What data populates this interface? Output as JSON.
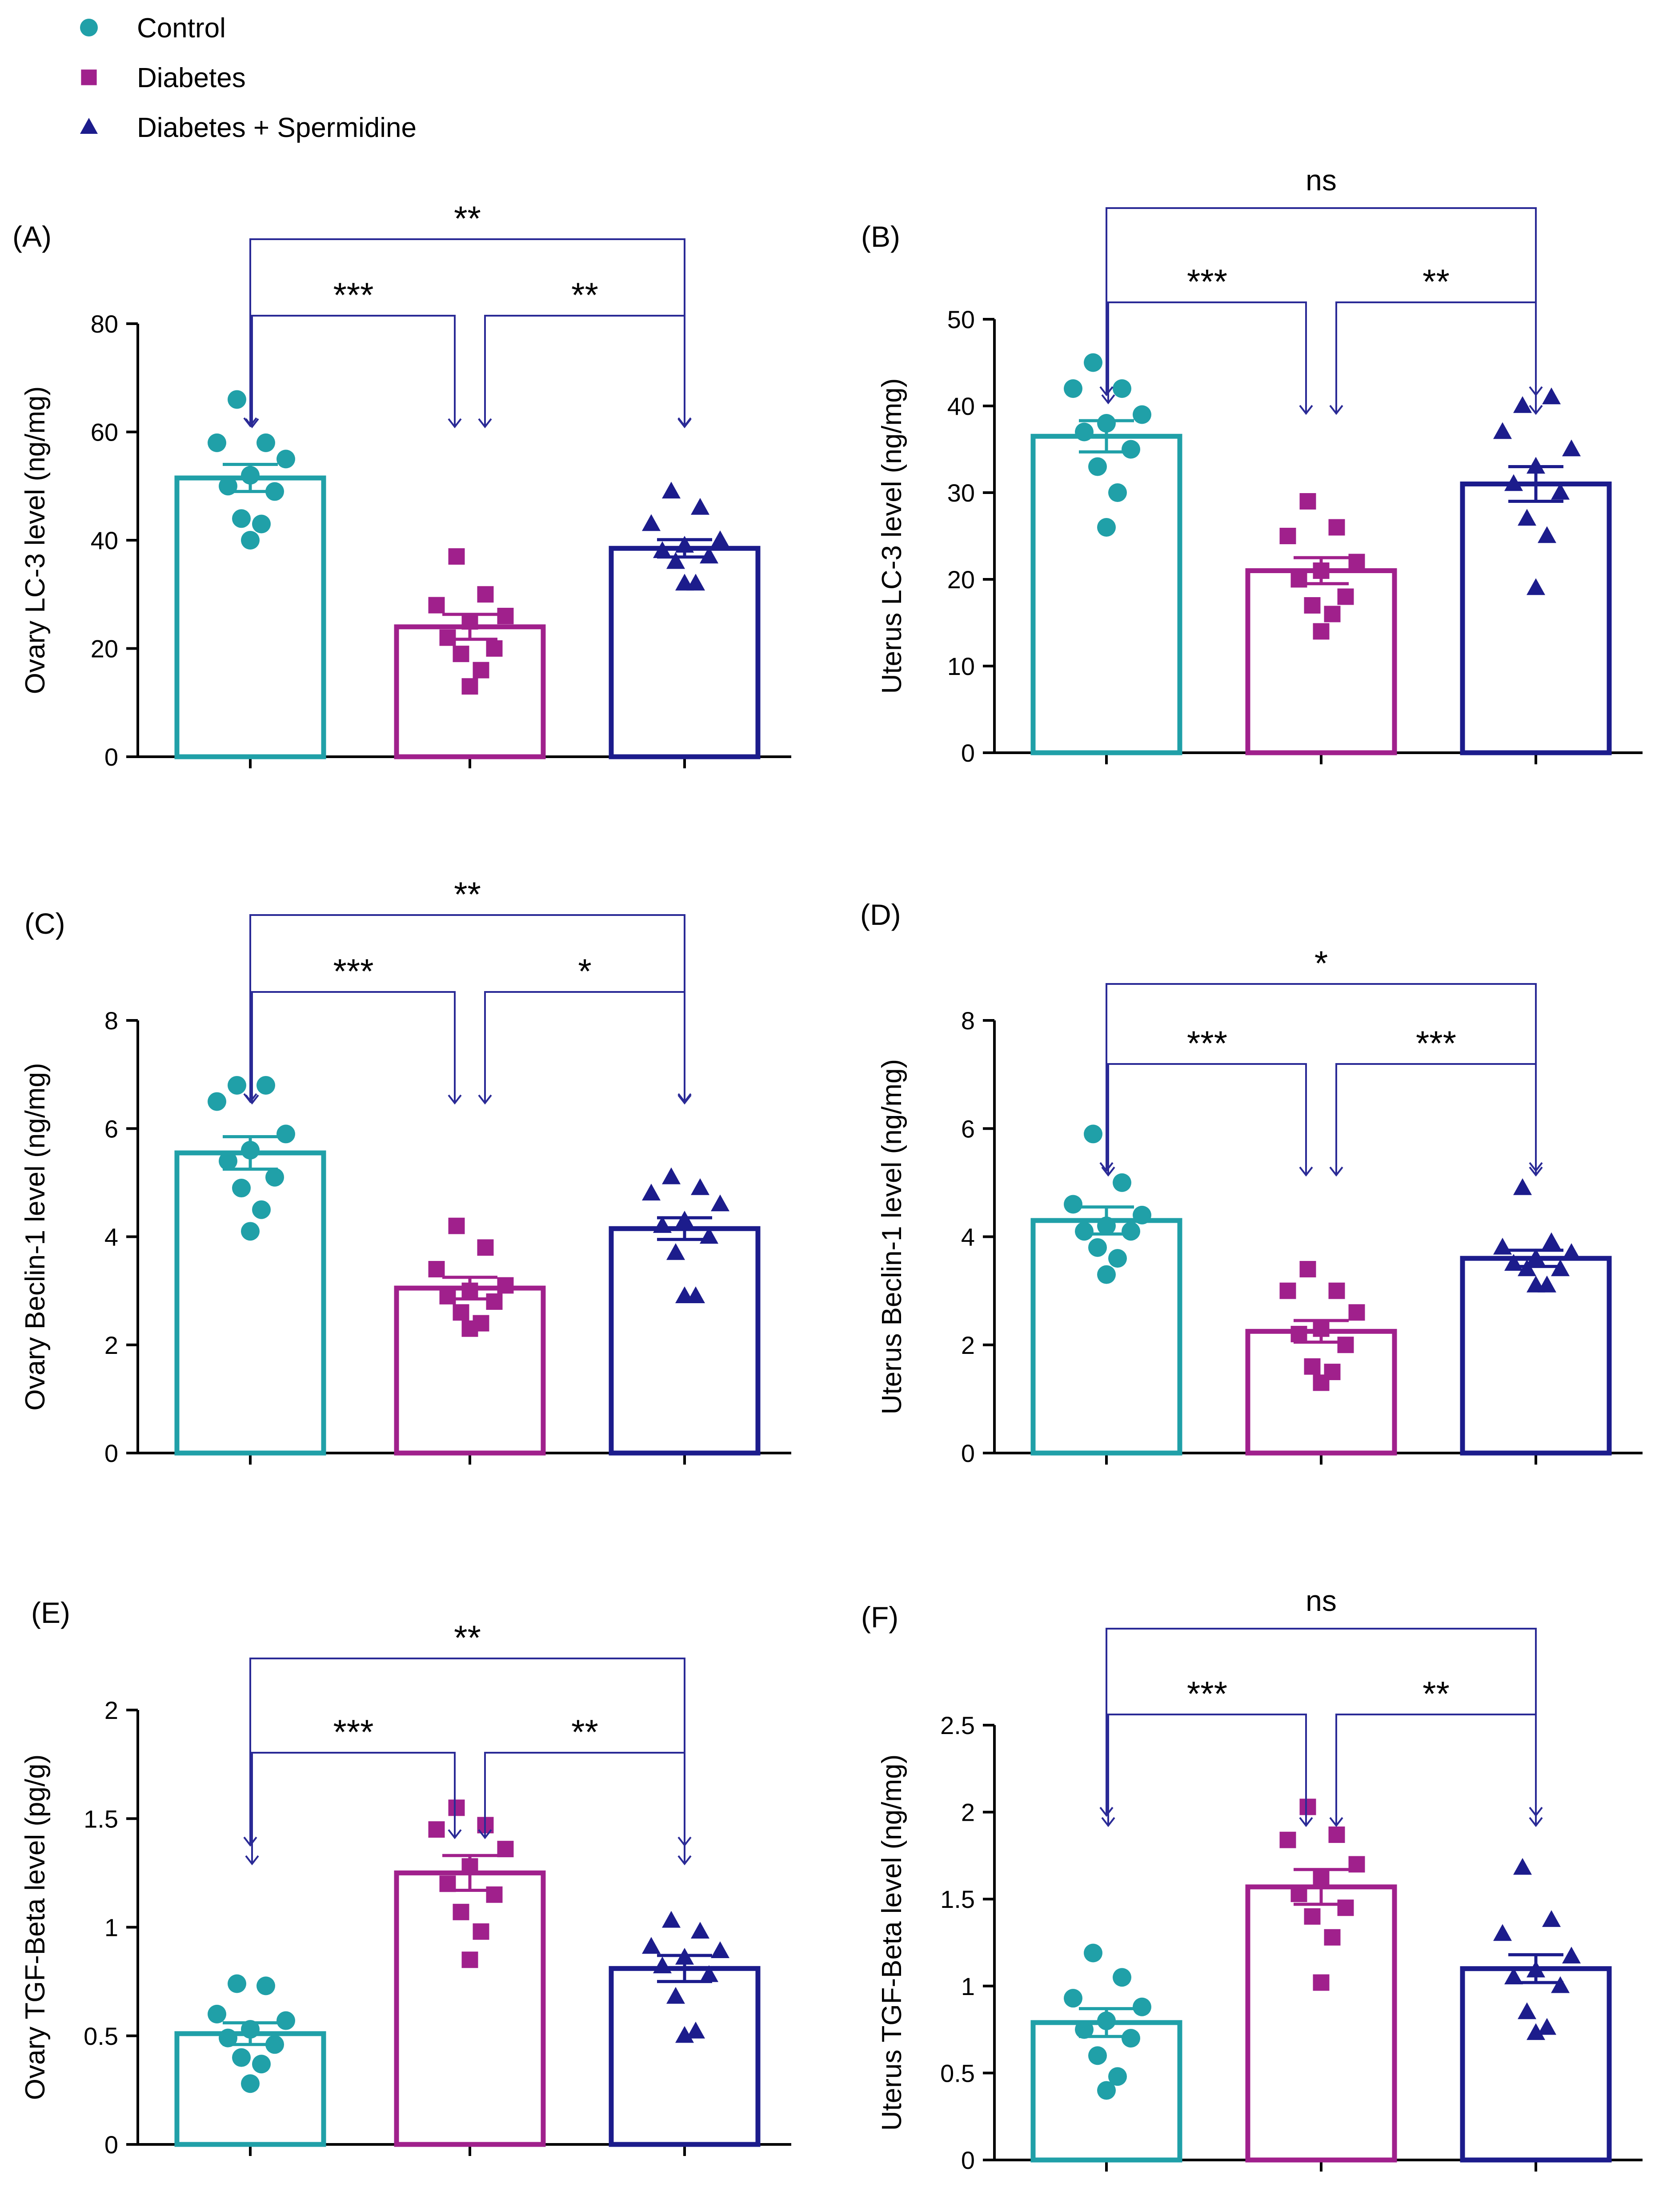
{
  "legend": {
    "placement": "top-left",
    "items": [
      {
        "label": "Control",
        "color": "#20a0a8",
        "marker": "circle"
      },
      {
        "label": "Diabetes",
        "color": "#a0208c",
        "marker": "square"
      },
      {
        "label": "Diabetes + Spermidine",
        "color": "#1c1c8c",
        "marker": "triangle"
      }
    ]
  },
  "colors": {
    "control": "#20a0a8",
    "diabetes": "#a0208c",
    "spermidine": "#1c1c8c",
    "bracket": "#2a2a96",
    "axis": "#000000"
  },
  "chart_data": [
    {
      "type": "bar",
      "panel": "(A)",
      "ylabel": "Ovary LC-3 level (ng/mg)",
      "xlabel": "",
      "ylim": [
        0,
        80
      ],
      "yticks": [
        0,
        20,
        40,
        60,
        80
      ],
      "categories": [
        "Control",
        "Diabetes",
        "Diabetes + Spermidine"
      ],
      "values": [
        51.5,
        24,
        38.5
      ],
      "sem": [
        2.5,
        2.3,
        1.6
      ],
      "points": [
        [
          66,
          58,
          58,
          55,
          52,
          50,
          49,
          44,
          43,
          40
        ],
        [
          37,
          30,
          28,
          26,
          25,
          22,
          20,
          19,
          16,
          13
        ],
        [
          49,
          46,
          43,
          40,
          39,
          38,
          37,
          36,
          32,
          32
        ]
      ],
      "brackets": [
        {
          "from": 0,
          "to": 1,
          "label": "***",
          "level": 0
        },
        {
          "from": 1,
          "to": 2,
          "label": "**",
          "level": 0
        },
        {
          "from": 0,
          "to": 2,
          "label": "**",
          "level": 1
        }
      ]
    },
    {
      "type": "bar",
      "panel": "(B)",
      "ylabel": "Uterus LC-3 level (ng/mg)",
      "xlabel": "",
      "ylim": [
        0,
        50
      ],
      "yticks": [
        0,
        10,
        20,
        30,
        40,
        50
      ],
      "categories": [
        "Control",
        "Diabetes",
        "Diabetes + Spermidine"
      ],
      "values": [
        36.5,
        21,
        31
      ],
      "sem": [
        1.8,
        1.5,
        2
      ],
      "points": [
        [
          45,
          42,
          42,
          39,
          38,
          37,
          35,
          33,
          30,
          26
        ],
        [
          29,
          26,
          25,
          22,
          21,
          20,
          18,
          17,
          16,
          14
        ],
        [
          40,
          41,
          37,
          35,
          33,
          31,
          30,
          27,
          25,
          19
        ]
      ],
      "brackets": [
        {
          "from": 0,
          "to": 1,
          "label": "***",
          "level": 0
        },
        {
          "from": 1,
          "to": 2,
          "label": "**",
          "level": 0
        },
        {
          "from": 0,
          "to": 2,
          "label": "ns",
          "level": 1
        }
      ]
    },
    {
      "type": "bar",
      "panel": "(C)",
      "ylabel": "Ovary Beclin-1 level (ng/mg)",
      "xlabel": "",
      "ylim": [
        0,
        8
      ],
      "yticks": [
        0,
        2,
        4,
        6,
        8
      ],
      "categories": [
        "Control",
        "Diabetes",
        "Diabetes + Spermidine"
      ],
      "values": [
        5.55,
        3.05,
        4.15
      ],
      "sem": [
        0.3,
        0.2,
        0.2
      ],
      "points": [
        [
          6.8,
          6.8,
          6.5,
          5.9,
          5.6,
          5.4,
          5.1,
          4.9,
          4.5,
          4.1
        ],
        [
          4.2,
          3.8,
          3.4,
          3.1,
          3.0,
          2.9,
          2.8,
          2.6,
          2.4,
          2.3
        ],
        [
          5.1,
          4.9,
          4.8,
          4.6,
          4.3,
          4.2,
          4.0,
          3.7,
          2.9,
          2.9
        ]
      ],
      "brackets": [
        {
          "from": 0,
          "to": 1,
          "label": "***",
          "level": 0
        },
        {
          "from": 1,
          "to": 2,
          "label": "*",
          "level": 0
        },
        {
          "from": 0,
          "to": 2,
          "label": "**",
          "level": 1
        }
      ]
    },
    {
      "type": "bar",
      "panel": "(D)",
      "ylabel": "Uterus Beclin-1 level (ng/mg)",
      "xlabel": "",
      "ylim": [
        0,
        8
      ],
      "yticks": [
        0,
        2,
        4,
        6,
        8
      ],
      "categories": [
        "Control",
        "Diabetes",
        "Diabetes + Spermidine"
      ],
      "values": [
        4.3,
        2.25,
        3.6
      ],
      "sem": [
        0.25,
        0.2,
        0.15
      ],
      "points": [
        [
          5.9,
          5.0,
          4.6,
          4.4,
          4.2,
          4.1,
          4.1,
          3.8,
          3.6,
          3.3
        ],
        [
          3.4,
          3.0,
          3.0,
          2.6,
          2.3,
          2.2,
          2.0,
          1.6,
          1.5,
          1.3
        ],
        [
          4.9,
          3.9,
          3.8,
          3.7,
          3.6,
          3.5,
          3.4,
          3.4,
          3.1,
          3.1
        ]
      ],
      "brackets": [
        {
          "from": 0,
          "to": 1,
          "label": "***",
          "level": 0
        },
        {
          "from": 1,
          "to": 2,
          "label": "***",
          "level": 0
        },
        {
          "from": 0,
          "to": 2,
          "label": "*",
          "level": 1
        }
      ]
    },
    {
      "type": "bar",
      "panel": "(E)",
      "ylabel": "Ovary TGF-Beta level (pg/g)",
      "xlabel": "",
      "ylim": [
        0,
        2.0
      ],
      "yticks": [
        0.0,
        0.5,
        1.0,
        1.5,
        2.0
      ],
      "categories": [
        "Control",
        "Diabetes",
        "Diabetes + Spermidine"
      ],
      "values": [
        0.51,
        1.25,
        0.81
      ],
      "sem": [
        0.05,
        0.08,
        0.06
      ],
      "points": [
        [
          0.74,
          0.73,
          0.6,
          0.57,
          0.53,
          0.49,
          0.46,
          0.4,
          0.37,
          0.28
        ],
        [
          1.55,
          1.47,
          1.45,
          1.36,
          1.28,
          1.2,
          1.15,
          1.07,
          0.98,
          0.85
        ],
        [
          1.03,
          0.98,
          0.91,
          0.89,
          0.86,
          0.82,
          0.78,
          0.68,
          0.52,
          0.5
        ]
      ],
      "brackets": [
        {
          "from": 0,
          "to": 1,
          "label": "***",
          "level": 0
        },
        {
          "from": 1,
          "to": 2,
          "label": "**",
          "level": 0
        },
        {
          "from": 0,
          "to": 2,
          "label": "**",
          "level": 1
        }
      ]
    },
    {
      "type": "bar",
      "panel": "(F)",
      "ylabel": "Uterus TGF-Beta level (ng/mg)",
      "xlabel": "",
      "ylim": [
        0,
        2.5
      ],
      "yticks": [
        0.0,
        0.5,
        1.0,
        1.5,
        2.0,
        2.5
      ],
      "categories": [
        "Control",
        "Diabetes",
        "Diabetes + Spermidine"
      ],
      "values": [
        0.79,
        1.57,
        1.1
      ],
      "sem": [
        0.08,
        0.1,
        0.08
      ],
      "points": [
        [
          1.19,
          1.05,
          0.93,
          0.88,
          0.8,
          0.75,
          0.7,
          0.6,
          0.48,
          0.4
        ],
        [
          2.03,
          1.87,
          1.84,
          1.7,
          1.63,
          1.53,
          1.45,
          1.4,
          1.28,
          1.02
        ],
        [
          1.68,
          1.38,
          1.3,
          1.17,
          1.09,
          1.05,
          1.0,
          0.85,
          0.76,
          0.73
        ]
      ],
      "brackets": [
        {
          "from": 0,
          "to": 1,
          "label": "***",
          "level": 0
        },
        {
          "from": 1,
          "to": 2,
          "label": "**",
          "level": 0
        },
        {
          "from": 0,
          "to": 2,
          "label": "ns",
          "level": 1
        }
      ]
    }
  ]
}
